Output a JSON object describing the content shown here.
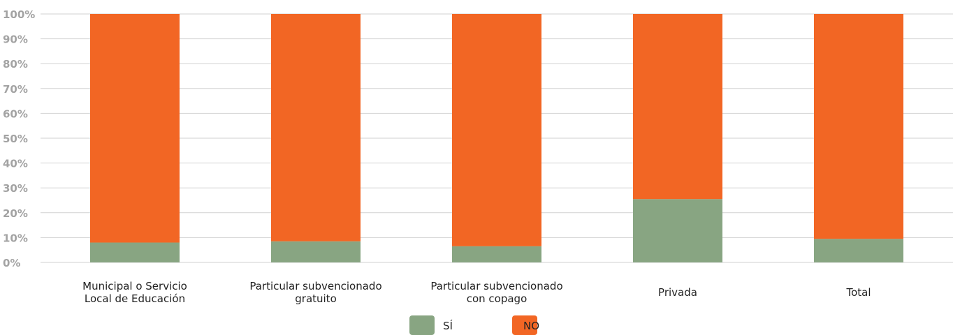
{
  "chart_data": {
    "type": "bar",
    "stacked": true,
    "categories": [
      [
        "Municipal o Servicio",
        "Local de Educación"
      ],
      [
        "Particular subvencionado",
        "gratuito"
      ],
      [
        "Particular subvencionado",
        "con copago"
      ],
      [
        "Privada"
      ],
      [
        "Total"
      ]
    ],
    "series": [
      {
        "name": "SÍ",
        "color": "#88a582",
        "values": [
          8,
          8.5,
          6.5,
          25.5,
          9.5
        ]
      },
      {
        "name": "NO",
        "color": "#f26624",
        "values": [
          92,
          91.5,
          93.5,
          74.5,
          90.5
        ]
      }
    ],
    "y_ticks": [
      "0%",
      "10%",
      "20%",
      "30%",
      "40%",
      "50%",
      "60%",
      "70%",
      "80%",
      "90%",
      "100%"
    ],
    "ylim": [
      0,
      100
    ],
    "grid": true,
    "legend": "bottom-center"
  }
}
